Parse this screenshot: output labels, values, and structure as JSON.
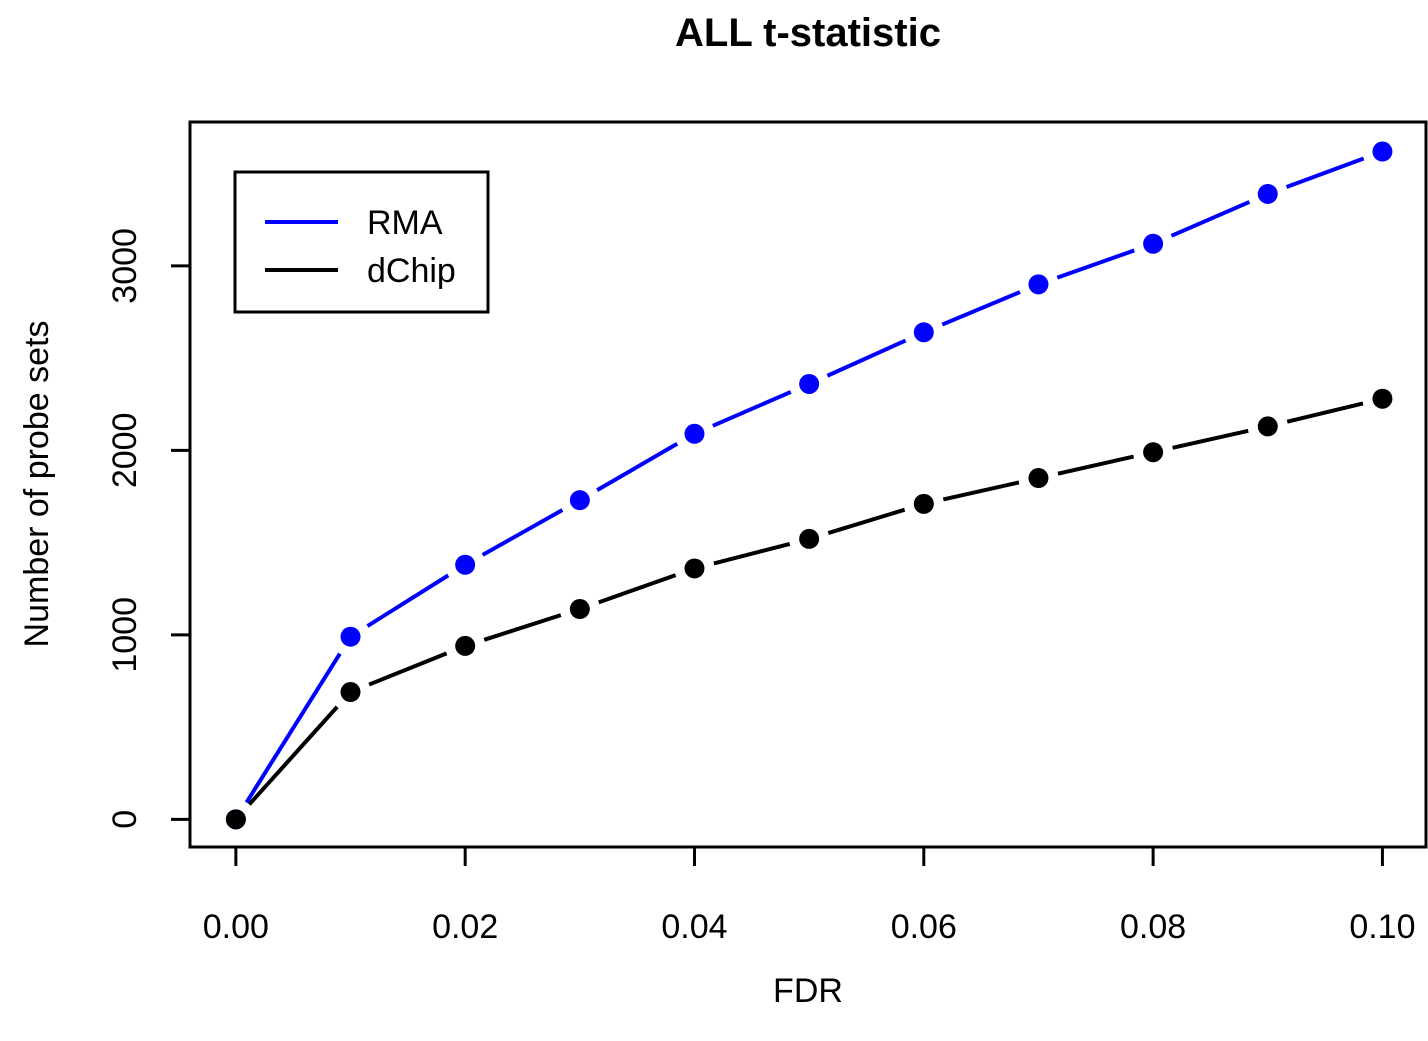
{
  "chart_data": {
    "type": "line",
    "title": "ALL t-statistic",
    "xlabel": "FDR",
    "ylabel": "Number of probe sets",
    "x": [
      0.0,
      0.01,
      0.02,
      0.03,
      0.04,
      0.05,
      0.06,
      0.07,
      0.08,
      0.09,
      0.1
    ],
    "x_ticks": [
      0.0,
      0.02,
      0.04,
      0.06,
      0.08,
      0.1
    ],
    "x_tick_labels": [
      "0.00",
      "0.02",
      "0.04",
      "0.06",
      "0.08",
      "0.10"
    ],
    "y_ticks": [
      0,
      1000,
      2000,
      3000
    ],
    "y_tick_labels": [
      "0",
      "1000",
      "2000",
      "3000"
    ],
    "xlim": [
      -0.004,
      0.1038
    ],
    "ylim": [
      -150,
      3780
    ],
    "grid": false,
    "legend_position": "top-left",
    "series": [
      {
        "name": "RMA",
        "color": "#0000ff",
        "values": [
          0,
          990,
          1380,
          1730,
          2090,
          2360,
          2640,
          2900,
          3120,
          3390,
          3620
        ]
      },
      {
        "name": "dChip",
        "color": "#000000",
        "values": [
          0,
          690,
          940,
          1140,
          1360,
          1520,
          1710,
          1850,
          1990,
          2130,
          2280
        ]
      }
    ]
  }
}
